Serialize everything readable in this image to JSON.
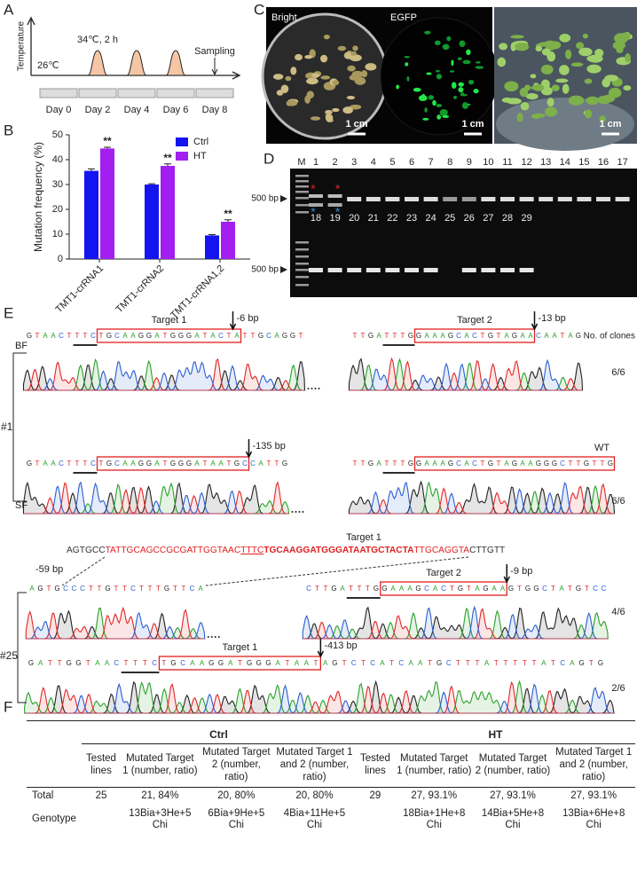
{
  "panel_labels": [
    "A",
    "B",
    "C",
    "D",
    "E",
    "F"
  ],
  "panel_a": {
    "y_label": "Temperature",
    "heat": "34℃, 2 h",
    "base": "26℃",
    "sampling": "Sampling",
    "days": [
      "Day 0",
      "Day 2",
      "Day 4",
      "Day 6",
      "Day 8"
    ]
  },
  "chart_data": {
    "type": "bar",
    "y_label": "Mutation frequency (%)",
    "categories": [
      "TMT1-crRNA1",
      "TMT1-crRNA2",
      "TMT1-crRNA1,2"
    ],
    "series": [
      {
        "name": "Ctrl",
        "color": "#1414f0",
        "values": [
          35.5,
          30,
          9.5
        ],
        "errors": [
          0.8,
          0.3,
          0.3
        ]
      },
      {
        "name": "HT",
        "color": "#a21ff0",
        "values": [
          44.5,
          37.5,
          15
        ],
        "errors": [
          0.5,
          0.8,
          0.8
        ]
      }
    ],
    "significance": [
      "**",
      "**",
      "**"
    ],
    "ylim": [
      0,
      50
    ],
    "yticks": [
      0,
      10,
      20,
      30,
      40,
      50
    ],
    "legend": "top-right"
  },
  "panel_c": {
    "labels": [
      "Bright",
      "EGFP"
    ],
    "scale_bars": [
      "1 cm",
      "1 cm",
      "1 cm"
    ]
  },
  "panel_d": {
    "lanes_top": [
      "M",
      "1",
      "2",
      "3",
      "4",
      "5",
      "6",
      "7",
      "8",
      "9",
      "10",
      "11",
      "12",
      "13",
      "14",
      "15",
      "16",
      "17"
    ],
    "lanes_bottom": [
      "18",
      "19",
      "20",
      "21",
      "22",
      "23",
      "24",
      "25",
      "26",
      "27",
      "28",
      "29"
    ],
    "size_markers": [
      "500 bp",
      "500 bp"
    ],
    "asterisks": [
      "*",
      "*",
      "*",
      "*"
    ]
  },
  "panel_e": {
    "clones_header": "No. of clones",
    "clone_1": "#1",
    "clone_25": "#25",
    "bf": "BF",
    "sf": "SF",
    "rows": [
      {
        "left": {
          "seq": "GTAACTTTCTGCAAGGATGGGATACTATTGCAGGT",
          "target": "Target 1",
          "deletion": "-6 bp"
        },
        "right": {
          "seq": "TTGATTTGGAAAGCACTGTAGAACAATAG",
          "target": "Target 2",
          "deletion": "-13 bp"
        },
        "clones": "6/6"
      },
      {
        "left": {
          "seq": "GTAACTTTCTGCAAGGATGGGATAATGCCATTG",
          "deletion": "-135 bp"
        },
        "right": {
          "seq": "TTGATTTGGAAAGCACTGTAGAAGGGCTTGTTG",
          "status": "WT"
        },
        "clones": "6/6"
      },
      {
        "left": {
          "seq": "AGTGCCCTTGTTCTTTGTTCA",
          "deletion": "-59 bp"
        },
        "right": {
          "seq": "CTTGATTTGGAAAGCACTGTAGAAGTGGCTATGTCC",
          "target": "Target 2",
          "deletion": "-9 bp"
        },
        "clones": "4/6"
      },
      {
        "full": {
          "seq": "GATTGGTAACTTTCTGCAAGGATGGGATAATAGTCTCATCAATGCTTTATTTTTATCAGTG",
          "target": "Target 1",
          "deletion": "-413 bp"
        },
        "clones": "2/6"
      }
    ],
    "wt": {
      "target": "Target 1",
      "parts": [
        {
          "text": "AGTGCC",
          "color": "#333333"
        },
        {
          "text": "TATTGCAGCCGCGATTGGTAAC",
          "color": "#e02020"
        },
        {
          "text": "TTTC",
          "color": "#e02020",
          "underline": true
        },
        {
          "text": "TGCAAGGATGGGATAATGCTACTA",
          "color": "#e02020",
          "bold": true
        },
        {
          "text": "TTGCAGGTA",
          "color": "#e02020"
        },
        {
          "text": "CTTGTT",
          "color": "#333333"
        }
      ]
    }
  },
  "table": {
    "groups": [
      "Ctrl",
      "HT"
    ],
    "columns": [
      "Tested lines",
      "Mutated Target 1 (number, ratio)",
      "Mutated Target 2 (number, ratio)",
      "Mutated Target 1 and 2 (number, ratio)",
      "Tested lines",
      "Mutated Target 1 (number, ratio)",
      "Mutated Target 2 (number, ratio)",
      "Mutated Target 1 and 2 (number, ratio)"
    ],
    "rows": [
      {
        "label": "Total",
        "ctrl": [
          "25",
          "21, 84%",
          "20, 80%",
          "20, 80%"
        ],
        "ht": [
          "29",
          "27, 93.1%",
          "27, 93.1%",
          "27, 93.1%"
        ]
      },
      {
        "label": "Genotype",
        "ctrl": [
          "13Bia+3He+5 Chi",
          "6Bia+9He+5 Chi",
          "4Bia+11He+5 Chi"
        ],
        "ht": [
          "18Bia+1He+8 Chi",
          "14Bia+5He+8 Chi",
          "13Bia+6He+8 Chi"
        ]
      }
    ]
  }
}
